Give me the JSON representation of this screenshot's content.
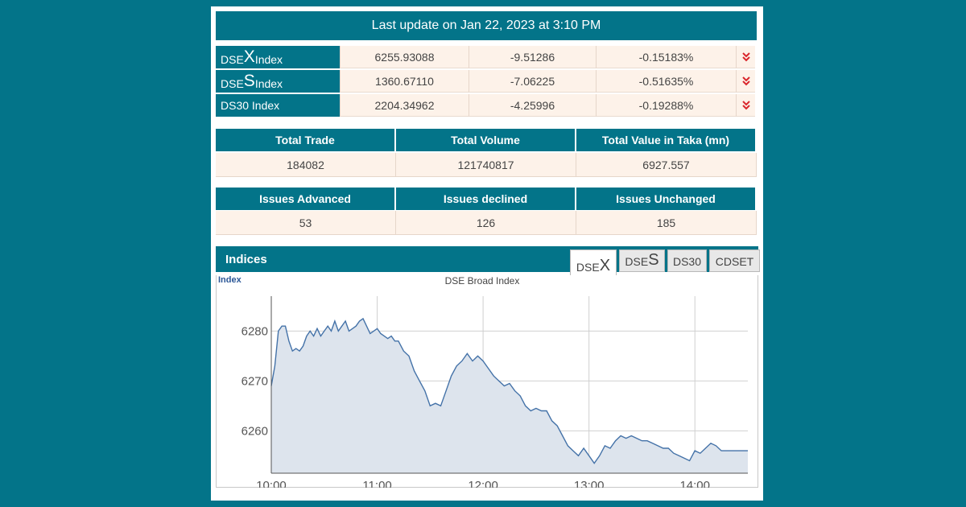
{
  "header": {
    "last_update": "Last update on Jan 22, 2023 at 3:10 PM"
  },
  "indices_summary": [
    {
      "name_prefix": "DSE",
      "name_letter": "X",
      "name_suffix": " Index",
      "value": "6255.93088",
      "change": "-9.51286",
      "percent": "-0.15183%",
      "trend_icon": "double-chevron-down-icon"
    },
    {
      "name_prefix": "DSE",
      "name_letter": "S",
      "name_suffix": " Index",
      "value": "1360.67110",
      "change": "-7.06225",
      "percent": "-0.51635%",
      "trend_icon": "double-chevron-down-icon"
    },
    {
      "name_prefix": "DS30 Index",
      "name_letter": "",
      "name_suffix": "",
      "value": "2204.34962",
      "change": "-4.25996",
      "percent": "-0.19288%",
      "trend_icon": "double-chevron-down-icon"
    }
  ],
  "market_stats": {
    "headers": [
      "Total Trade",
      "Total Volume",
      "Total Value in Taka (mn)"
    ],
    "values": [
      "184082",
      "121740817",
      "6927.557"
    ]
  },
  "issues_stats": {
    "headers": [
      "Issues Advanced",
      "Issues declined",
      "Issues Unchanged"
    ],
    "values": [
      "53",
      "126",
      "185"
    ]
  },
  "indices_panel": {
    "title": "Indices",
    "tabs": [
      {
        "prefix": "DSE",
        "letter": "X",
        "active": true
      },
      {
        "prefix": "DSE",
        "letter": "S",
        "active": false
      },
      {
        "prefix": "DS30",
        "letter": "",
        "active": false
      },
      {
        "prefix": "CDSET",
        "letter": "",
        "active": false
      }
    ]
  },
  "colors": {
    "accent": "#037489",
    "cell_bg": "#fdf2e9",
    "down_arrow": "#d9262c",
    "line": "#4472a8",
    "area": "#dde4ed"
  },
  "chart_data": {
    "type": "area",
    "title": "DSE Broad Index",
    "ylabel": "Index",
    "xlabel": "",
    "xlim": [
      "10:00",
      "14:30"
    ],
    "ylim": [
      6251.5,
      6287
    ],
    "x_ticks": [
      "10:00",
      "11:00",
      "12:00",
      "13:00",
      "14:00"
    ],
    "y_ticks": [
      6260,
      6270,
      6280
    ],
    "grid": true,
    "series": [
      {
        "name": "",
        "points": [
          [
            "10:00",
            6269
          ],
          [
            "10:02",
            6273
          ],
          [
            "10:04",
            6280
          ],
          [
            "10:06",
            6281
          ],
          [
            "10:08",
            6281
          ],
          [
            "10:10",
            6278
          ],
          [
            "10:12",
            6276
          ],
          [
            "10:14",
            6276.5
          ],
          [
            "10:16",
            6276
          ],
          [
            "10:18",
            6277
          ],
          [
            "10:20",
            6279
          ],
          [
            "10:22",
            6280
          ],
          [
            "10:24",
            6279
          ],
          [
            "10:26",
            6280.5
          ],
          [
            "10:28",
            6279
          ],
          [
            "10:30",
            6280
          ],
          [
            "10:32",
            6281
          ],
          [
            "10:34",
            6280
          ],
          [
            "10:36",
            6282
          ],
          [
            "10:38",
            6280
          ],
          [
            "10:40",
            6281
          ],
          [
            "10:42",
            6282
          ],
          [
            "10:44",
            6280
          ],
          [
            "10:46",
            6280.5
          ],
          [
            "10:48",
            6281
          ],
          [
            "10:50",
            6282
          ],
          [
            "10:52",
            6282.5
          ],
          [
            "10:54",
            6281
          ],
          [
            "10:56",
            6279.5
          ],
          [
            "10:58",
            6280
          ],
          [
            "11:00",
            6280.5
          ],
          [
            "11:02",
            6279.5
          ],
          [
            "11:04",
            6279
          ],
          [
            "11:06",
            6278.5
          ],
          [
            "11:08",
            6279
          ],
          [
            "11:10",
            6278
          ],
          [
            "11:12",
            6278
          ],
          [
            "11:15",
            6276
          ],
          [
            "11:18",
            6275
          ],
          [
            "11:21",
            6272
          ],
          [
            "11:24",
            6270
          ],
          [
            "11:27",
            6268
          ],
          [
            "11:30",
            6265
          ],
          [
            "11:33",
            6265.5
          ],
          [
            "11:36",
            6265
          ],
          [
            "11:39",
            6268
          ],
          [
            "11:42",
            6271
          ],
          [
            "11:45",
            6273
          ],
          [
            "11:48",
            6274
          ],
          [
            "11:51",
            6275.5
          ],
          [
            "11:54",
            6274
          ],
          [
            "11:57",
            6275
          ],
          [
            "12:00",
            6274
          ],
          [
            "12:03",
            6272.5
          ],
          [
            "12:06",
            6271
          ],
          [
            "12:09",
            6270
          ],
          [
            "12:12",
            6269
          ],
          [
            "12:15",
            6269.5
          ],
          [
            "12:18",
            6268
          ],
          [
            "12:21",
            6267
          ],
          [
            "12:24",
            6265
          ],
          [
            "12:27",
            6264
          ],
          [
            "12:30",
            6264.5
          ],
          [
            "12:33",
            6264
          ],
          [
            "12:36",
            6264
          ],
          [
            "12:39",
            6262
          ],
          [
            "12:42",
            6261
          ],
          [
            "12:45",
            6259
          ],
          [
            "12:48",
            6257
          ],
          [
            "12:51",
            6256
          ],
          [
            "12:54",
            6255
          ],
          [
            "12:57",
            6256.5
          ],
          [
            "13:00",
            6255
          ],
          [
            "13:03",
            6253.5
          ],
          [
            "13:06",
            6255
          ],
          [
            "13:09",
            6257
          ],
          [
            "13:12",
            6256.5
          ],
          [
            "13:15",
            6258
          ],
          [
            "13:18",
            6259
          ],
          [
            "13:21",
            6258.5
          ],
          [
            "13:24",
            6259
          ],
          [
            "13:27",
            6258.5
          ],
          [
            "13:30",
            6258
          ],
          [
            "13:33",
            6258
          ],
          [
            "13:36",
            6257.5
          ],
          [
            "13:39",
            6257
          ],
          [
            "13:42",
            6256.5
          ],
          [
            "13:45",
            6256.5
          ],
          [
            "13:48",
            6255.5
          ],
          [
            "13:51",
            6255
          ],
          [
            "13:54",
            6254.5
          ],
          [
            "13:57",
            6254
          ],
          [
            "14:00",
            6256
          ],
          [
            "14:03",
            6255.5
          ],
          [
            "14:06",
            6256.5
          ],
          [
            "14:09",
            6257.5
          ],
          [
            "14:12",
            6257
          ],
          [
            "14:15",
            6256
          ],
          [
            "14:20",
            6256
          ],
          [
            "14:25",
            6256
          ],
          [
            "14:30",
            6256
          ]
        ]
      }
    ]
  }
}
